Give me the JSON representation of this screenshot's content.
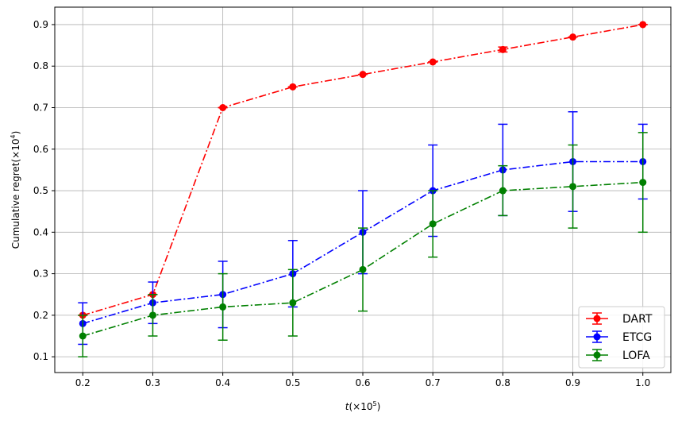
{
  "chart_data": {
    "type": "line",
    "x": [
      0.2,
      0.3,
      0.4,
      0.5,
      0.6,
      0.7,
      0.8,
      0.9,
      1.0
    ],
    "x_tick_labels": [
      "0.2",
      "0.3",
      "0.4",
      "0.5",
      "0.6",
      "0.7",
      "0.8",
      "0.9",
      "1.0"
    ],
    "y_tick_values": [
      0.1,
      0.2,
      0.3,
      0.4,
      0.5,
      0.6,
      0.7,
      0.8,
      0.9
    ],
    "y_tick_labels": [
      "0.1",
      "0.2",
      "0.3",
      "0.4",
      "0.5",
      "0.6",
      "0.7",
      "0.8",
      "0.9"
    ],
    "xlim": [
      0.16,
      1.04
    ],
    "ylim": [
      0.062,
      0.942
    ],
    "xlabel_main": "t",
    "xlabel_unit": "(×10",
    "xlabel_exp": "5",
    "xlabel_close": ")",
    "ylabel_main": "Cumulative regret(×10",
    "ylabel_exp": "4",
    "ylabel_close": ")",
    "grid": true,
    "legend_position": "lower-right",
    "series": [
      {
        "name": "DART",
        "color": "#ff0000",
        "values": [
          0.2,
          0.25,
          0.7,
          0.75,
          0.78,
          0.81,
          0.84,
          0.87,
          0.9
        ],
        "errors": [
          0,
          0,
          0,
          0,
          0,
          0,
          0.006,
          0,
          0
        ]
      },
      {
        "name": "ETCG",
        "color": "#0000ff",
        "values": [
          0.18,
          0.23,
          0.25,
          0.3,
          0.4,
          0.5,
          0.55,
          0.57,
          0.57
        ],
        "errors": [
          0.05,
          0.05,
          0.08,
          0.08,
          0.1,
          0.11,
          0.11,
          0.12,
          0.09
        ]
      },
      {
        "name": "LOFA",
        "color": "#008000",
        "values": [
          0.15,
          0.2,
          0.22,
          0.23,
          0.31,
          0.42,
          0.5,
          0.51,
          0.52
        ],
        "errors": [
          0.05,
          0.05,
          0.08,
          0.08,
          0.1,
          0.08,
          0.06,
          0.1,
          0.12
        ]
      }
    ]
  }
}
